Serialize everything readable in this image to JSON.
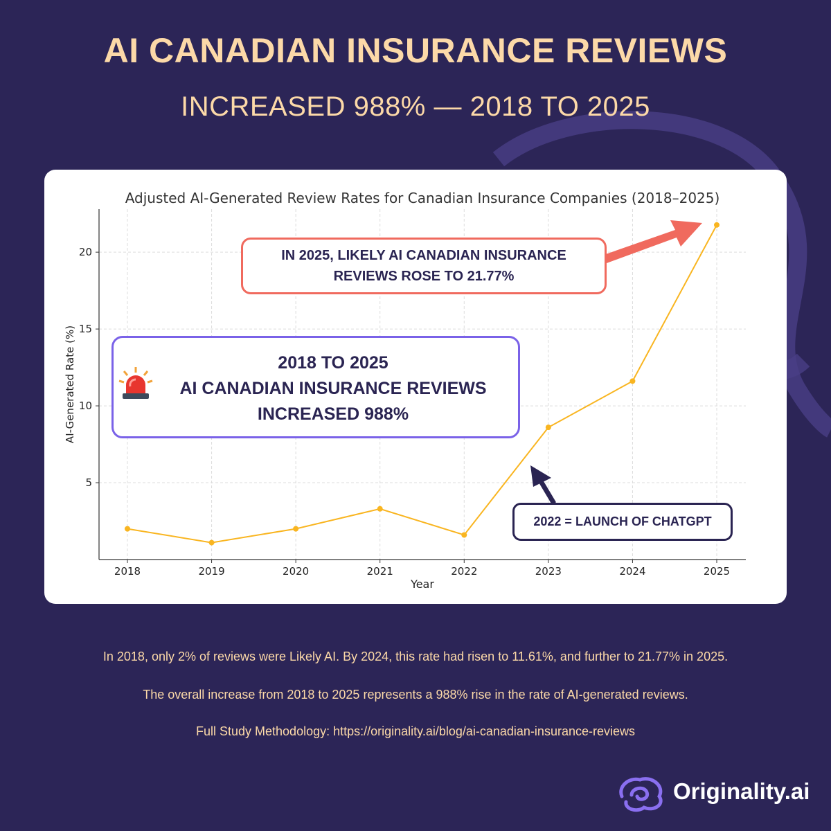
{
  "header": {
    "title": "AI CANADIAN INSURANCE REVIEWS",
    "subtitle": "INCREASED 988% — 2018 TO 2025"
  },
  "chart_data": {
    "type": "line",
    "title": "Adjusted AI-Generated Review Rates for Canadian Insurance Companies (2018–2025)",
    "xlabel": "Year",
    "ylabel": "AI-Generated Rate (%)",
    "categories": [
      "2018",
      "2019",
      "2020",
      "2021",
      "2022",
      "2023",
      "2024",
      "2025"
    ],
    "series": [
      {
        "values": [
          2.0,
          1.1,
          2.0,
          3.3,
          1.6,
          8.6,
          11.61,
          21.77
        ]
      }
    ],
    "yticks": [
      5,
      10,
      15,
      20
    ],
    "ylim": [
      0,
      22.8
    ],
    "grid": true,
    "line_color": "#f9b520"
  },
  "annotations": {
    "peak": {
      "line1": "IN 2025, LIKELY AI CANADIAN INSURANCE",
      "line2": "REVIEWS ROSE TO 21.77%"
    },
    "summary": {
      "line1": "2018 TO 2025",
      "line2": "AI CANADIAN INSURANCE REVIEWS",
      "line3": "INCREASED 988%"
    },
    "chatgpt": "2022 = LAUNCH OF CHATGPT"
  },
  "footnotes": [
    "In 2018, only 2% of reviews were Likely AI. By 2024, this rate had risen to 11.61%, and further to 21.77% in 2025.",
    "The overall increase from 2018 to 2025 represents a 988% rise in the rate of AI-generated reviews.",
    "Full Study Methodology: https://originality.ai/blog/ai-canadian-insurance-reviews"
  ],
  "brand": {
    "name": "Originality.ai",
    "logo_icon": "brain-icon"
  },
  "colors": {
    "background": "#2c2557",
    "accent_text": "#fcd9a8",
    "peak_arrow": "#f06a5e",
    "summary_border": "#7a62e8"
  }
}
